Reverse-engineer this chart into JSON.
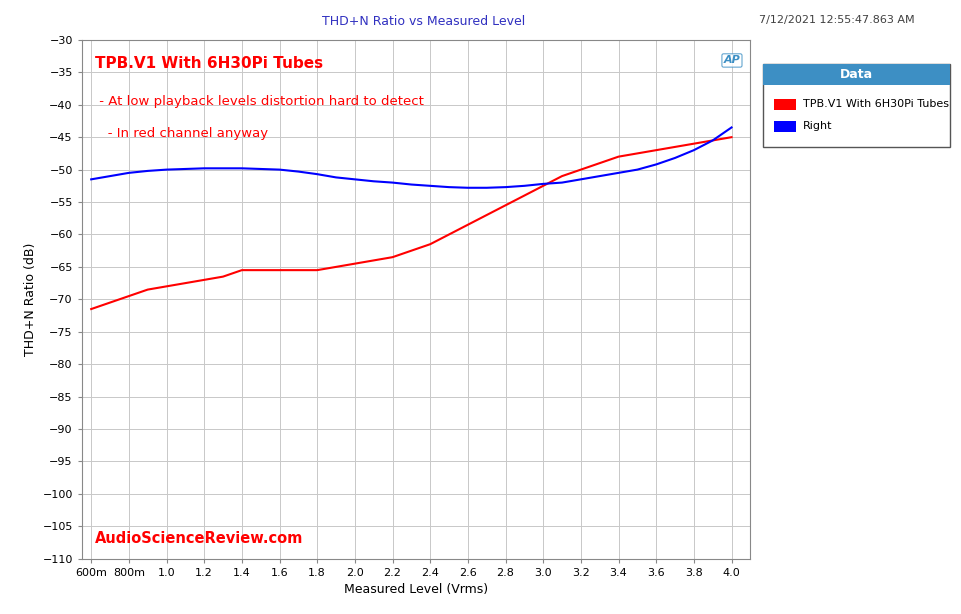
{
  "title": "THD+N Ratio vs Measured Level",
  "timestamp": "7/12/2021 12:55:47.863 AM",
  "xlabel": "Measured Level (Vrms)",
  "ylabel": "THD+N Ratio (dB)",
  "ylim": [
    -110,
    -30
  ],
  "yticks": [
    -110,
    -105,
    -100,
    -95,
    -90,
    -85,
    -80,
    -75,
    -70,
    -65,
    -60,
    -55,
    -50,
    -45,
    -40,
    -35,
    -30
  ],
  "xtick_labels": [
    "600m",
    "800m",
    "1.0",
    "1.2",
    "1.4",
    "1.6",
    "1.8",
    "2.0",
    "2.2",
    "2.4",
    "2.6",
    "2.8",
    "3.0",
    "3.2",
    "3.4",
    "3.6",
    "3.8",
    "4.0"
  ],
  "xtick_values": [
    0.6,
    0.8,
    1.0,
    1.2,
    1.4,
    1.6,
    1.8,
    2.0,
    2.2,
    2.4,
    2.6,
    2.8,
    3.0,
    3.2,
    3.4,
    3.6,
    3.8,
    4.0
  ],
  "xlim": [
    0.55,
    4.1
  ],
  "red_x": [
    0.6,
    0.7,
    0.8,
    0.9,
    1.0,
    1.1,
    1.2,
    1.3,
    1.4,
    1.5,
    1.6,
    1.7,
    1.8,
    1.9,
    2.0,
    2.1,
    2.2,
    2.3,
    2.4,
    2.5,
    2.6,
    2.7,
    2.8,
    2.9,
    3.0,
    3.1,
    3.2,
    3.3,
    3.4,
    3.5,
    3.6,
    3.7,
    3.8,
    3.9,
    4.0
  ],
  "red_y": [
    -71.5,
    -70.5,
    -69.5,
    -68.5,
    -68.0,
    -67.5,
    -67.0,
    -66.5,
    -65.5,
    -65.5,
    -65.5,
    -65.5,
    -65.5,
    -65.0,
    -64.5,
    -64.0,
    -63.5,
    -62.5,
    -61.5,
    -60.0,
    -58.5,
    -57.0,
    -55.5,
    -54.0,
    -52.5,
    -51.0,
    -50.0,
    -49.0,
    -48.0,
    -47.5,
    -47.0,
    -46.5,
    -46.0,
    -45.5,
    -45.0
  ],
  "blue_x": [
    0.6,
    0.7,
    0.8,
    0.9,
    1.0,
    1.1,
    1.2,
    1.3,
    1.4,
    1.5,
    1.6,
    1.7,
    1.8,
    1.9,
    2.0,
    2.1,
    2.2,
    2.3,
    2.4,
    2.5,
    2.6,
    2.7,
    2.8,
    2.9,
    3.0,
    3.1,
    3.2,
    3.3,
    3.4,
    3.5,
    3.6,
    3.7,
    3.8,
    3.9,
    4.0
  ],
  "blue_y": [
    -51.5,
    -51.0,
    -50.5,
    -50.2,
    -50.0,
    -49.9,
    -49.8,
    -49.8,
    -49.8,
    -49.9,
    -50.0,
    -50.3,
    -50.7,
    -51.2,
    -51.5,
    -51.8,
    -52.0,
    -52.3,
    -52.5,
    -52.7,
    -52.8,
    -52.8,
    -52.7,
    -52.5,
    -52.2,
    -52.0,
    -51.5,
    -51.0,
    -50.5,
    -50.0,
    -49.2,
    -48.2,
    -47.0,
    -45.5,
    -43.5
  ],
  "red_color": "#FF0000",
  "blue_color": "#0000FF",
  "bg_color": "#FFFFFF",
  "grid_color": "#C8C8C8",
  "annotation_line1": "TPB.V1 With 6H30Pi Tubes",
  "annotation_line2": " - At low playback levels distortion hard to detect",
  "annotation_line3": "   - In red channel anyway",
  "asr_text": "AudioScienceReview.com",
  "legend_title": "Data",
  "legend_title_bg": "#3d8fc4",
  "legend_entries": [
    "TPB.V1 With 6H30Pi Tubes",
    "Right"
  ],
  "title_color": "#3030C0",
  "timestamp_color": "#404040",
  "ap_color": "#3d8fc4"
}
